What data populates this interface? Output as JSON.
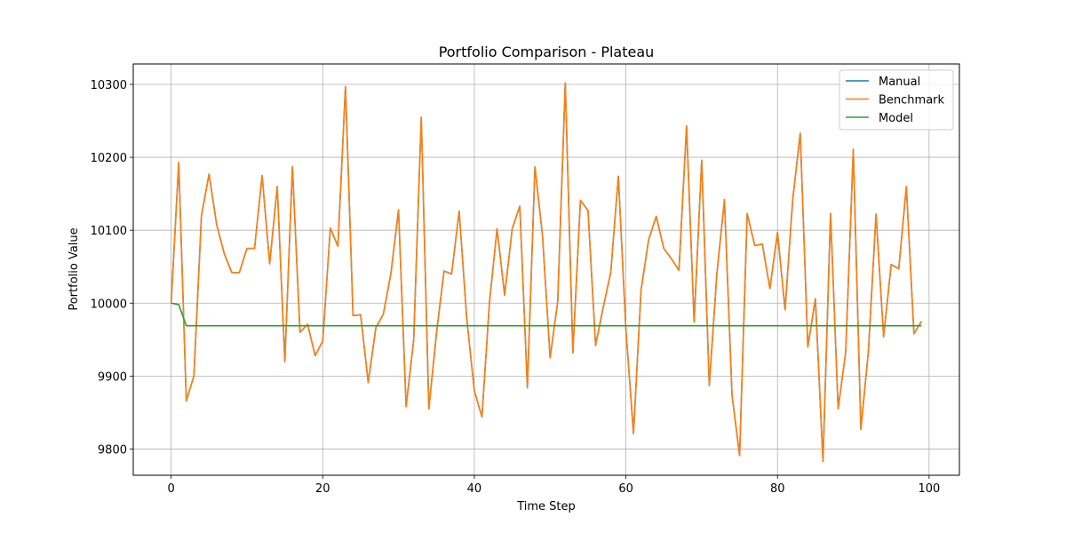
{
  "chart_data": {
    "type": "line",
    "title": "Portfolio Comparison - Plateau",
    "xlabel": "Time Step",
    "ylabel": "Portfolio Value",
    "xlim": [
      -5,
      104
    ],
    "ylim": [
      9764,
      10328
    ],
    "xticks": [
      0,
      20,
      40,
      60,
      80,
      100
    ],
    "yticks": [
      9800,
      9900,
      10000,
      10100,
      10200,
      10300
    ],
    "grid": true,
    "legend": "upper right",
    "x": [
      0,
      1,
      2,
      3,
      4,
      5,
      6,
      7,
      8,
      9,
      10,
      11,
      12,
      13,
      14,
      15,
      16,
      17,
      18,
      19,
      20,
      21,
      22,
      23,
      24,
      25,
      26,
      27,
      28,
      29,
      30,
      31,
      32,
      33,
      34,
      35,
      36,
      37,
      38,
      39,
      40,
      41,
      42,
      43,
      44,
      45,
      46,
      47,
      48,
      49,
      50,
      51,
      52,
      53,
      54,
      55,
      56,
      57,
      58,
      59,
      60,
      61,
      62,
      63,
      64,
      65,
      66,
      67,
      68,
      69,
      70,
      71,
      72,
      73,
      74,
      75,
      76,
      77,
      78,
      79,
      80,
      81,
      82,
      83,
      84,
      85,
      86,
      87,
      88,
      89,
      90,
      91,
      92,
      93,
      94,
      95,
      96,
      97,
      98,
      99
    ],
    "series": [
      {
        "name": "Manual",
        "color": "#1f77b4",
        "values": [
          10000,
          10193,
          9866,
          9900,
          10120,
          10177,
          10108,
          10068,
          10042,
          10042,
          10075,
          10075,
          10175,
          10054,
          10160,
          9920,
          10187,
          9960,
          9971,
          9928,
          9948,
          10103,
          10078,
          10297,
          9983,
          9984,
          9891,
          9966,
          9985,
          10041,
          10128,
          9858,
          9950,
          10255,
          9855,
          9958,
          10044,
          10040,
          10126,
          9979,
          9880,
          9844,
          10001,
          10102,
          10011,
          10102,
          10133,
          9884,
          10187,
          10092,
          9925,
          10002,
          10302,
          9932,
          10141,
          10127,
          9942,
          9994,
          10042,
          10174,
          9964,
          9821,
          10018,
          10087,
          10119,
          10075,
          10061,
          10045,
          10243,
          9974,
          10196,
          9887,
          10040,
          10142,
          9874,
          9791,
          10123,
          10079,
          10081,
          10020,
          10097,
          9991,
          10141,
          10233,
          9940,
          10006,
          9783,
          10123,
          9855,
          9933,
          10211,
          9827,
          9935,
          10122,
          9954,
          10053,
          10047,
          10160,
          9958,
          9975
        ]
      },
      {
        "name": "Benchmark",
        "color": "#ff7f0e",
        "values": [
          10000,
          10193,
          9866,
          9900,
          10120,
          10177,
          10108,
          10068,
          10042,
          10042,
          10075,
          10075,
          10175,
          10054,
          10160,
          9920,
          10187,
          9960,
          9971,
          9928,
          9948,
          10103,
          10078,
          10297,
          9983,
          9984,
          9891,
          9966,
          9985,
          10041,
          10128,
          9858,
          9950,
          10255,
          9855,
          9958,
          10044,
          10040,
          10126,
          9979,
          9880,
          9844,
          10001,
          10102,
          10011,
          10102,
          10133,
          9884,
          10187,
          10092,
          9925,
          10002,
          10302,
          9932,
          10141,
          10127,
          9942,
          9994,
          10042,
          10174,
          9964,
          9821,
          10018,
          10087,
          10119,
          10075,
          10061,
          10045,
          10243,
          9974,
          10196,
          9887,
          10040,
          10142,
          9874,
          9791,
          10123,
          10079,
          10081,
          10020,
          10097,
          9991,
          10141,
          10233,
          9940,
          10006,
          9783,
          10123,
          9855,
          9933,
          10211,
          9827,
          9935,
          10122,
          9954,
          10053,
          10047,
          10160,
          9958,
          9975
        ]
      },
      {
        "name": "Model",
        "color": "#2ca02c",
        "values": [
          10000,
          9998,
          9969,
          9969,
          9969,
          9969,
          9969,
          9969,
          9969,
          9969,
          9969,
          9969,
          9969,
          9969,
          9969,
          9969,
          9969,
          9969,
          9969,
          9969,
          9969,
          9969,
          9969,
          9969,
          9969,
          9969,
          9969,
          9969,
          9969,
          9969,
          9969,
          9969,
          9969,
          9969,
          9969,
          9969,
          9969,
          9969,
          9969,
          9969,
          9969,
          9969,
          9969,
          9969,
          9969,
          9969,
          9969,
          9969,
          9969,
          9969,
          9969,
          9969,
          9969,
          9969,
          9969,
          9969,
          9969,
          9969,
          9969,
          9969,
          9969,
          9969,
          9969,
          9969,
          9969,
          9969,
          9969,
          9969,
          9969,
          9969,
          9969,
          9969,
          9969,
          9969,
          9969,
          9969,
          9969,
          9969,
          9969,
          9969,
          9969,
          9969,
          9969,
          9969,
          9969,
          9969,
          9969,
          9969,
          9969,
          9969,
          9969,
          9969,
          9969,
          9969,
          9969,
          9969,
          9969,
          9969,
          9969,
          9969
        ]
      }
    ]
  }
}
